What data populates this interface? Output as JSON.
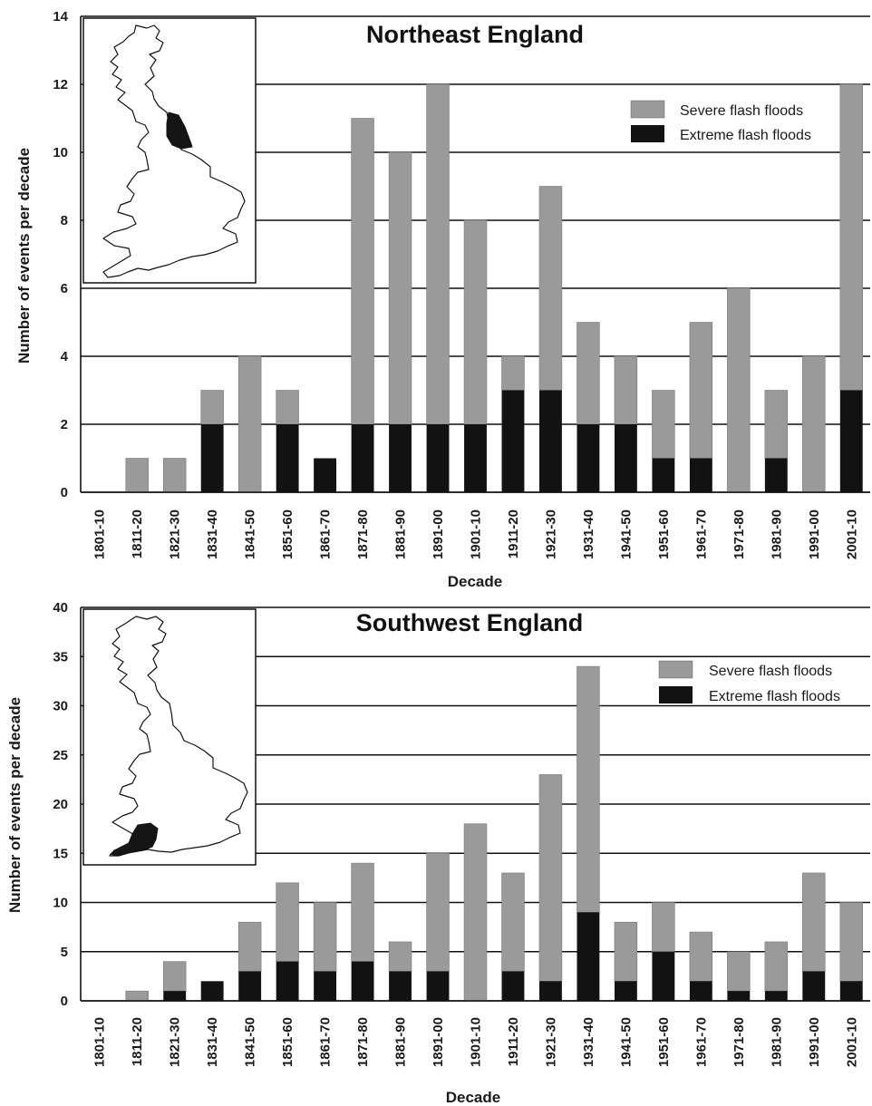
{
  "colors": {
    "severe": "#9a9a9a",
    "extreme": "#121212",
    "grid": "#111111",
    "map_fill": "#ffffff",
    "region_fill": "#151515"
  },
  "chart_data": [
    {
      "type": "bar",
      "stacked": true,
      "title": "Northeast England",
      "xlabel": "Decade",
      "ylabel": "Number of events per decade",
      "ylim": [
        0,
        14
      ],
      "yticks": [
        "0",
        "2",
        "4",
        "6",
        "8",
        "10",
        "12",
        "14"
      ],
      "grid": true,
      "legend_position": "top-right",
      "inset": "map of Great Britain with Northeast England highlighted",
      "categories": [
        "1801-10",
        "1811-20",
        "1821-30",
        "1831-40",
        "1841-50",
        "1851-60",
        "1861-70",
        "1871-80",
        "1881-90",
        "1891-00",
        "1901-10",
        "1911-20",
        "1921-30",
        "1931-40",
        "1941-50",
        "1951-60",
        "1961-70",
        "1971-80",
        "1981-90",
        "1991-00",
        "2001-10"
      ],
      "series": [
        {
          "name": "Extreme flash floods",
          "values": [
            0,
            0,
            0,
            2,
            0,
            2,
            1,
            2,
            2,
            2,
            2,
            3,
            3,
            2,
            2,
            1,
            1,
            0,
            1,
            0,
            3
          ]
        },
        {
          "name": "Severe flash floods",
          "values": [
            0,
            1,
            1,
            1,
            4,
            1,
            0,
            9,
            8,
            10,
            6,
            1,
            6,
            3,
            2,
            2,
            4,
            6,
            2,
            4,
            9
          ]
        }
      ],
      "legend": [
        "Severe flash floods",
        "Extreme flash floods"
      ]
    },
    {
      "type": "bar",
      "stacked": true,
      "title": "Southwest England",
      "xlabel": "Decade",
      "ylabel": "Number of events per decade",
      "ylim": [
        0,
        40
      ],
      "yticks": [
        "0",
        "5",
        "10",
        "15",
        "20",
        "25",
        "30",
        "35",
        "40"
      ],
      "grid": true,
      "legend_position": "top-right",
      "inset": "map of Great Britain with Southwest England highlighted",
      "categories": [
        "1801-10",
        "1811-20",
        "1821-30",
        "1831-40",
        "1841-50",
        "1851-60",
        "1861-70",
        "1871-80",
        "1881-90",
        "1891-00",
        "1901-10",
        "1911-20",
        "1921-30",
        "1931-40",
        "1941-50",
        "1951-60",
        "1961-70",
        "1971-80",
        "1981-90",
        "1991-00",
        "2001-10"
      ],
      "series": [
        {
          "name": "Extreme flash floods",
          "values": [
            0,
            0,
            1,
            2,
            3,
            4,
            3,
            4,
            3,
            3,
            0,
            3,
            2,
            9,
            2,
            5,
            2,
            1,
            1,
            3,
            2
          ]
        },
        {
          "name": "Severe flash floods",
          "values": [
            0,
            1,
            3,
            0,
            5,
            8,
            7,
            10,
            3,
            12,
            18,
            10,
            21,
            25,
            6,
            5,
            5,
            4,
            5,
            10,
            8
          ]
        }
      ],
      "legend": [
        "Severe flash floods",
        "Extreme flash floods"
      ]
    }
  ]
}
